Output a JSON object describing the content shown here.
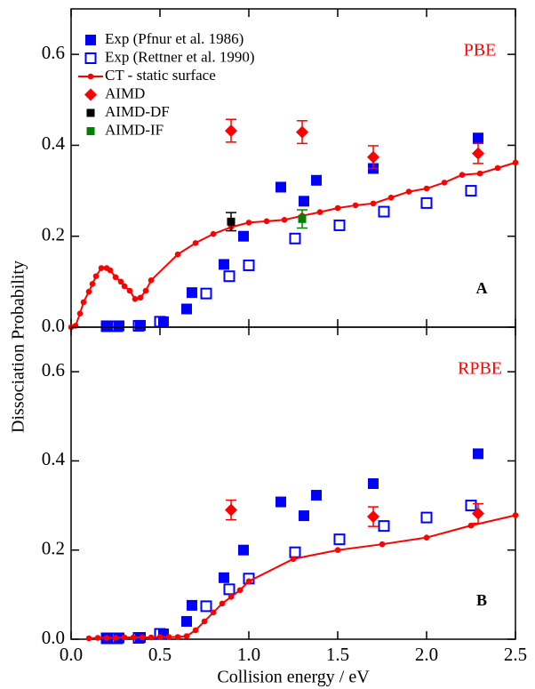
{
  "chart_data": [
    {
      "type": "scatter",
      "ylabel": "Dissociation Probability",
      "model": "PBE",
      "panel": "A",
      "xlim": [
        0,
        2.5
      ],
      "ylim": [
        0,
        0.7
      ],
      "xticks": [
        0,
        0.5,
        1,
        1.5,
        2,
        2.5
      ],
      "yticks": [
        {
          "value": 0,
          "label": "0.0"
        },
        0.2,
        0.4,
        0.6
      ],
      "legend": "upper left",
      "series": [
        {
          "name": "Exp (Pfnur et al. 1986)",
          "color": "#0000ff",
          "marker": "square",
          "x": [
            0.2,
            0.27,
            0.39,
            0.52,
            0.65,
            0.68,
            0.86,
            0.97,
            1.18,
            1.31,
            1.38,
            1.7,
            2.29
          ],
          "values": [
            0.003,
            0.003,
            0.004,
            0.012,
            0.04,
            0.076,
            0.138,
            0.2,
            0.308,
            0.277,
            0.323,
            0.349,
            0.416
          ]
        },
        {
          "name": "Exp (Rettner et al. 1990)",
          "color": "#0000ff",
          "marker": "open-square",
          "x": [
            0.2,
            0.26,
            0.38,
            0.5,
            0.76,
            0.89,
            1.0,
            1.26,
            1.51,
            1.76,
            2.0,
            2.25
          ],
          "values": [
            0.002,
            0.002,
            0.003,
            0.012,
            0.074,
            0.112,
            0.136,
            0.195,
            0.224,
            0.254,
            0.273,
            0.3
          ]
        },
        {
          "name": "CT - static surface",
          "color": "#ff0000",
          "marker": "line-dot",
          "x": [
            0,
            0.025,
            0.05,
            0.07,
            0.1,
            0.12,
            0.14,
            0.17,
            0.2,
            0.22,
            0.25,
            0.28,
            0.3,
            0.33,
            0.36,
            0.39,
            0.42,
            0.45,
            0.6,
            0.7,
            0.8,
            0.9,
            1.0,
            1.1,
            1.2,
            1.3,
            1.4,
            1.5,
            1.6,
            1.7,
            1.8,
            1.9,
            2.0,
            2.1,
            2.2,
            2.3,
            2.4,
            2.5
          ],
          "values": [
            0,
            0.003,
            0.03,
            0.055,
            0.078,
            0.095,
            0.112,
            0.13,
            0.13,
            0.125,
            0.11,
            0.1,
            0.09,
            0.08,
            0.062,
            0.065,
            0.08,
            0.103,
            0.16,
            0.185,
            0.205,
            0.22,
            0.23,
            0.233,
            0.236,
            0.245,
            0.253,
            0.262,
            0.268,
            0.272,
            0.285,
            0.298,
            0.305,
            0.318,
            0.335,
            0.338,
            0.35,
            0.362
          ]
        },
        {
          "name": "AIMD",
          "color": "#ff0000",
          "marker": "diamond",
          "x": [
            0.9,
            1.3,
            1.7,
            2.29
          ],
          "values": [
            0.432,
            0.429,
            0.374,
            0.382
          ],
          "errors": [
            0.025,
            0.025,
            0.025,
            0.022
          ]
        },
        {
          "name": "AIMD-DF",
          "color": "#000000",
          "marker": "square-small",
          "x": [
            0.9
          ],
          "values": [
            0.232
          ],
          "errors": [
            0.02
          ]
        },
        {
          "name": "AIMD-IF",
          "color": "#008000",
          "marker": "square-small",
          "x": [
            1.3
          ],
          "values": [
            0.238
          ],
          "errors": [
            0.02
          ]
        }
      ]
    },
    {
      "type": "scatter",
      "xlabel": "Collision energy / eV",
      "model": "RPBE",
      "panel": "B",
      "xlim": [
        0,
        2.5
      ],
      "ylim": [
        0,
        0.7
      ],
      "xticks": [
        {
          "value": 0,
          "label": "0.0"
        },
        0.5,
        {
          "value": 1,
          "label": "1.0"
        },
        1.5,
        {
          "value": 2,
          "label": "2.0"
        },
        2.5
      ],
      "yticks": [
        {
          "value": 0,
          "label": "0.0"
        },
        0.2,
        0.4,
        0.6
      ],
      "series": [
        {
          "color": "#0000ff",
          "marker": "square",
          "x": [
            0.2,
            0.27,
            0.39,
            0.52,
            0.65,
            0.68,
            0.86,
            0.97,
            1.18,
            1.31,
            1.38,
            1.7,
            2.29
          ],
          "values": [
            0.003,
            0.003,
            0.004,
            0.012,
            0.04,
            0.076,
            0.138,
            0.2,
            0.308,
            0.277,
            0.323,
            0.349,
            0.416
          ]
        },
        {
          "color": "#0000ff",
          "marker": "open-square",
          "x": [
            0.2,
            0.26,
            0.38,
            0.5,
            0.76,
            0.89,
            1.0,
            1.26,
            1.51,
            1.76,
            2.0,
            2.25
          ],
          "values": [
            0.002,
            0.002,
            0.003,
            0.012,
            0.074,
            0.112,
            0.136,
            0.195,
            0.224,
            0.254,
            0.273,
            0.3
          ]
        },
        {
          "color": "#ff0000",
          "marker": "line-dot",
          "x": [
            0.1,
            0.15,
            0.2,
            0.25,
            0.3,
            0.35,
            0.4,
            0.45,
            0.5,
            0.55,
            0.6,
            0.65,
            0.7,
            0.75,
            0.8,
            0.85,
            0.9,
            0.95,
            1.0,
            1.25,
            1.5,
            1.75,
            2.0,
            2.25,
            2.5
          ],
          "values": [
            0.002,
            0.003,
            0.003,
            0.003,
            0.004,
            0.004,
            0.004,
            0.004,
            0.005,
            0.005,
            0.005,
            0.007,
            0.02,
            0.04,
            0.06,
            0.08,
            0.095,
            0.11,
            0.13,
            0.18,
            0.2,
            0.213,
            0.228,
            0.255,
            0.278
          ]
        },
        {
          "color": "#ff0000",
          "marker": "diamond",
          "x": [
            0.9,
            1.7,
            2.29
          ],
          "values": [
            0.29,
            0.275,
            0.282
          ],
          "errors": [
            0.022,
            0.022,
            0.022
          ]
        }
      ]
    }
  ]
}
